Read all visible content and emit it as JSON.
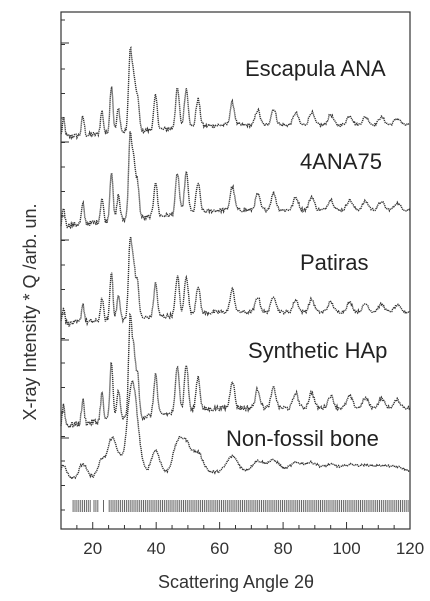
{
  "chart_data": {
    "type": "line",
    "xlabel": "Scattering Angle 2θ",
    "ylabel": "X-ray Intensity * Q /arb. un.",
    "xlim": [
      10,
      120
    ],
    "xticks": [
      20,
      40,
      60,
      80,
      100,
      120
    ],
    "y_tick_labels": false,
    "grid": false,
    "series": [
      {
        "name": "Escapula ANA",
        "color": "#333333"
      },
      {
        "name": "4ANA75",
        "color": "#333333"
      },
      {
        "name": "Patiras",
        "color": "#333333"
      },
      {
        "name": "Synthetic HAp",
        "color": "#333333"
      },
      {
        "name": "Non-fossil bone",
        "color": "#333333"
      }
    ],
    "reflection_markers": "vertical tick marks from ~12 to 120 degrees along the bottom"
  }
}
